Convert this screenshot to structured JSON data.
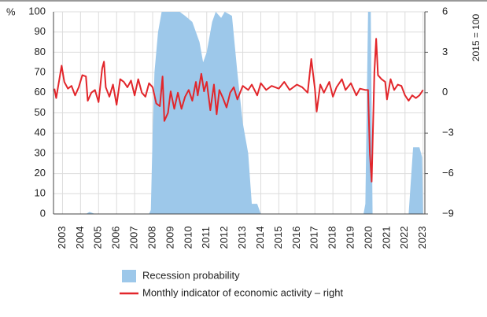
{
  "chart_data": {
    "type": "area_line",
    "y_label": "%",
    "y2_label": "2015 = 100",
    "xlim": [
      2002.5,
      2023.1
    ],
    "xticks": [
      2003,
      2004,
      2005,
      2006,
      2007,
      2008,
      2009,
      2010,
      2011,
      2012,
      2013,
      2014,
      2015,
      2016,
      2017,
      2018,
      2019,
      2020,
      2021,
      2022,
      2023
    ],
    "ylim": [
      0,
      100
    ],
    "yticks": [
      0,
      10,
      20,
      30,
      40,
      50,
      60,
      70,
      80,
      90,
      100
    ],
    "y2lim": [
      -9,
      6
    ],
    "y2ticks": [
      {
        "value": -9,
        "label": "−9"
      },
      {
        "value": -6,
        "label": "−6"
      },
      {
        "value": -3,
        "label": "−3"
      },
      0,
      3,
      6
    ],
    "grid": true,
    "series": [
      {
        "name": "Recession probability",
        "color": "#9dc8ea",
        "kind": "area",
        "x": [
          2002.55,
          2004.3,
          2004.5,
          2004.8,
          2007.8,
          2007.9,
          2008.0,
          2008.1,
          2008.3,
          2008.5,
          2009.5,
          2009.8,
          2010.2,
          2010.6,
          2010.8,
          2011.0,
          2011.3,
          2011.5,
          2011.8,
          2012.0,
          2012.4,
          2012.7,
          2013.0,
          2013.3,
          2013.5,
          2013.8,
          2014.0,
          2019.7,
          2019.8,
          2019.95,
          2020.1,
          2020.2,
          2022.2,
          2022.45,
          2022.8,
          2022.95,
          2023.0
        ],
        "values": [
          0,
          0,
          1,
          0,
          0,
          2,
          40,
          70,
          90,
          100,
          100,
          98,
          95,
          85,
          75,
          80,
          95,
          100,
          97,
          100,
          98,
          70,
          45,
          30,
          5,
          5,
          0,
          0,
          5,
          100,
          100,
          0,
          0,
          33,
          33,
          28,
          0
        ]
      },
      {
        "name": "Monthly indicator of economic activity – right",
        "color": "#e2262b",
        "kind": "line",
        "axis": "y2",
        "x": [
          2002.55,
          2002.65,
          2002.85,
          2002.95,
          2003.1,
          2003.3,
          2003.5,
          2003.7,
          2003.9,
          2004.1,
          2004.3,
          2004.4,
          2004.6,
          2004.8,
          2005.0,
          2005.2,
          2005.3,
          2005.4,
          2005.6,
          2005.8,
          2006.0,
          2006.2,
          2006.4,
          2006.6,
          2006.8,
          2007.0,
          2007.2,
          2007.4,
          2007.6,
          2007.8,
          2008.0,
          2008.2,
          2008.4,
          2008.55,
          2008.65,
          2008.85,
          2009.0,
          2009.2,
          2009.4,
          2009.6,
          2009.8,
          2010.0,
          2010.2,
          2010.4,
          2010.5,
          2010.7,
          2010.85,
          2011.0,
          2011.2,
          2011.4,
          2011.55,
          2011.7,
          2011.9,
          2012.1,
          2012.3,
          2012.5,
          2012.7,
          2013.0,
          2013.3,
          2013.5,
          2013.8,
          2014.0,
          2014.3,
          2014.6,
          2015.0,
          2015.3,
          2015.6,
          2016.0,
          2016.3,
          2016.6,
          2016.8,
          2017.0,
          2017.1,
          2017.3,
          2017.5,
          2017.8,
          2018.0,
          2018.2,
          2018.5,
          2018.7,
          2019.0,
          2019.3,
          2019.5,
          2019.8,
          2019.95,
          2020.05,
          2020.15,
          2020.3,
          2020.4,
          2020.5,
          2020.7,
          2020.9,
          2021.0,
          2021.2,
          2021.4,
          2021.6,
          2021.8,
          2022.0,
          2022.2,
          2022.4,
          2022.6,
          2022.8,
          2023.0
        ],
        "values": [
          0.3,
          -0.4,
          1.2,
          2.0,
          0.8,
          0.3,
          0.5,
          -0.2,
          0.4,
          1.3,
          1.2,
          -0.6,
          0.0,
          0.2,
          -0.7,
          1.8,
          2.3,
          0.4,
          -0.3,
          0.6,
          -0.9,
          1.0,
          0.8,
          0.4,
          0.9,
          -0.2,
          1.0,
          0.0,
          -0.3,
          0.7,
          0.4,
          -0.8,
          -1.0,
          1.2,
          -2.1,
          -1.5,
          0.1,
          -1.2,
          0.0,
          -1.2,
          -0.3,
          0.2,
          -0.6,
          0.8,
          -0.2,
          1.4,
          0.1,
          0.8,
          -1.3,
          0.6,
          -1.6,
          0.2,
          -0.4,
          -1.1,
          0.0,
          0.4,
          -0.5,
          0.5,
          0.2,
          0.6,
          -0.2,
          0.7,
          0.2,
          0.5,
          0.3,
          0.8,
          0.2,
          0.6,
          0.4,
          0.0,
          2.5,
          0.3,
          -1.4,
          0.6,
          0.0,
          0.8,
          -0.3,
          0.4,
          1.0,
          0.2,
          0.7,
          -0.2,
          0.3,
          0.2,
          0.2,
          -4.5,
          -6.6,
          1.5,
          4.0,
          1.3,
          1.0,
          0.8,
          -0.5,
          1.0,
          0.2,
          0.6,
          0.5,
          -0.2,
          -0.6,
          -0.2,
          -0.4,
          -0.2,
          0.2
        ]
      }
    ]
  }
}
